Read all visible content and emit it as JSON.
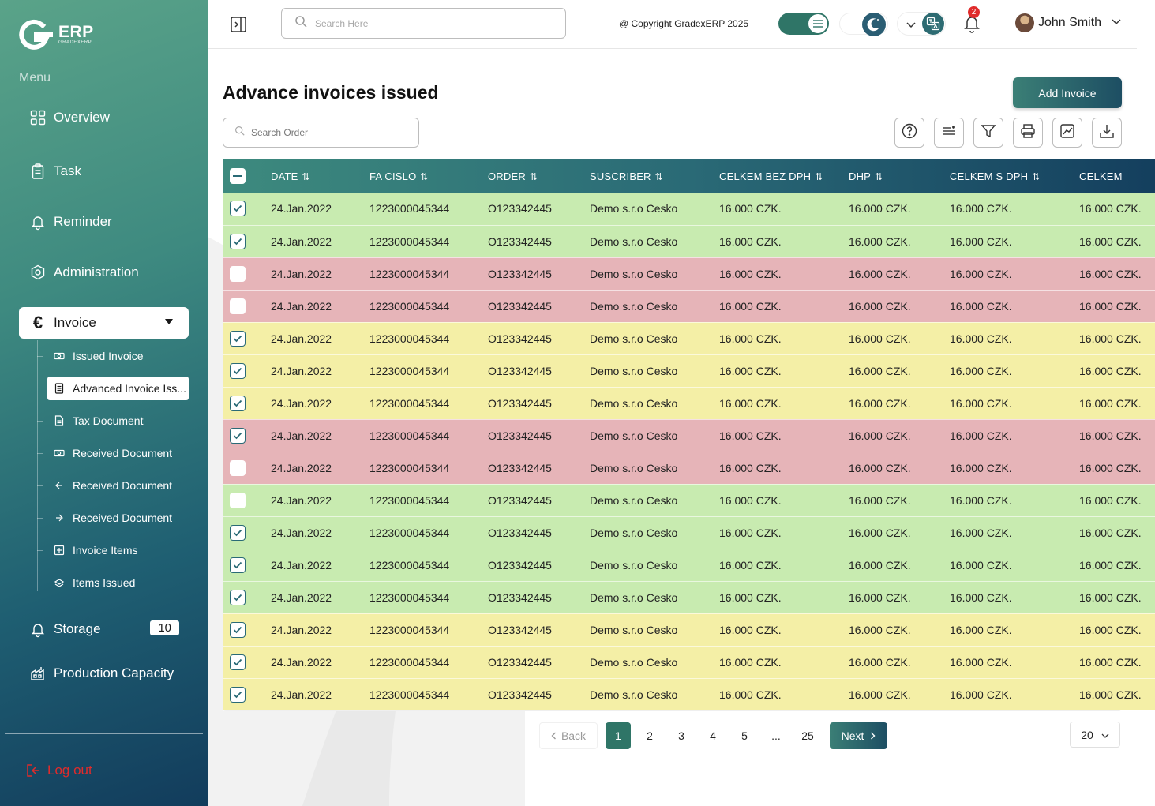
{
  "brand": {
    "name": "ERP",
    "subtitle": "GRADEXERP"
  },
  "sidebar": {
    "menu_label": "Menu",
    "items": [
      {
        "label": "Overview",
        "icon": "grid-icon"
      },
      {
        "label": "Task",
        "icon": "clipboard-icon"
      },
      {
        "label": "Reminder",
        "icon": "bell-icon"
      },
      {
        "label": "Administration",
        "icon": "settings-icon"
      },
      {
        "label": "Invoice",
        "icon": "euro-icon"
      }
    ],
    "sub_items": [
      {
        "label": "Issued Invoice",
        "icon": "cash-icon"
      },
      {
        "label": "Advanced Invoice Iss...",
        "icon": "document-icon"
      },
      {
        "label": "Tax Document",
        "icon": "file-icon"
      },
      {
        "label": "Received Document",
        "icon": "cash-icon"
      },
      {
        "label": "Received Document",
        "icon": "arrow-in-icon"
      },
      {
        "label": "Received Document",
        "icon": "arrow-out-icon"
      },
      {
        "label": "Invoice Items",
        "icon": "box-icon"
      },
      {
        "label": "Items Issued",
        "icon": "stack-icon"
      }
    ],
    "storage": {
      "label": "Storage",
      "count": "10"
    },
    "production": {
      "label": "Production Capacity"
    },
    "logout": "Log out"
  },
  "header": {
    "search_placeholder": "Search Here",
    "copyright": "@ Copyright GradexERP 2025",
    "notifications": "2",
    "user_name": "John Smith"
  },
  "main": {
    "title": "Advance invoices issued",
    "add_button": "Add Invoice",
    "search_placeholder": "Search Order"
  },
  "table": {
    "columns": [
      "DATE",
      "FA CISLO",
      "ORDER",
      "SUSCRIBER",
      "CELKEM BEZ DPH",
      "DHP",
      "CELKEM S DPH",
      "CELKEM"
    ],
    "rows": [
      {
        "checked": true,
        "color": "green",
        "date": "24.Jan.2022",
        "fa": "1223000045344",
        "order": "O123342445",
        "subscriber": "Demo s.r.o Cesko",
        "bez": "16.000 CZK.",
        "dhp": "16.000 CZK.",
        "sdph": "16.000 CZK.",
        "celkem": "16.000 CZK."
      },
      {
        "checked": true,
        "color": "green",
        "date": "24.Jan.2022",
        "fa": "1223000045344",
        "order": "O123342445",
        "subscriber": "Demo s.r.o Cesko",
        "bez": "16.000 CZK.",
        "dhp": "16.000 CZK.",
        "sdph": "16.000 CZK.",
        "celkem": "16.000 CZK."
      },
      {
        "checked": false,
        "color": "red",
        "date": "24.Jan.2022",
        "fa": "1223000045344",
        "order": "O123342445",
        "subscriber": "Demo s.r.o Cesko",
        "bez": "16.000 CZK.",
        "dhp": "16.000 CZK.",
        "sdph": "16.000 CZK.",
        "celkem": "16.000 CZK."
      },
      {
        "checked": false,
        "color": "red",
        "date": "24.Jan.2022",
        "fa": "1223000045344",
        "order": "O123342445",
        "subscriber": "Demo s.r.o Cesko",
        "bez": "16.000 CZK.",
        "dhp": "16.000 CZK.",
        "sdph": "16.000 CZK.",
        "celkem": "16.000 CZK."
      },
      {
        "checked": true,
        "color": "yellow",
        "date": "24.Jan.2022",
        "fa": "1223000045344",
        "order": "O123342445",
        "subscriber": "Demo s.r.o Cesko",
        "bez": "16.000 CZK.",
        "dhp": "16.000 CZK.",
        "sdph": "16.000 CZK.",
        "celkem": "16.000 CZK."
      },
      {
        "checked": true,
        "color": "yellow",
        "date": "24.Jan.2022",
        "fa": "1223000045344",
        "order": "O123342445",
        "subscriber": "Demo s.r.o Cesko",
        "bez": "16.000 CZK.",
        "dhp": "16.000 CZK.",
        "sdph": "16.000 CZK.",
        "celkem": "16.000 CZK."
      },
      {
        "checked": true,
        "color": "yellow",
        "date": "24.Jan.2022",
        "fa": "1223000045344",
        "order": "O123342445",
        "subscriber": "Demo s.r.o Cesko",
        "bez": "16.000 CZK.",
        "dhp": "16.000 CZK.",
        "sdph": "16.000 CZK.",
        "celkem": "16.000 CZK."
      },
      {
        "checked": true,
        "color": "red",
        "date": "24.Jan.2022",
        "fa": "1223000045344",
        "order": "O123342445",
        "subscriber": "Demo s.r.o Cesko",
        "bez": "16.000 CZK.",
        "dhp": "16.000 CZK.",
        "sdph": "16.000 CZK.",
        "celkem": "16.000 CZK."
      },
      {
        "checked": false,
        "color": "red",
        "date": "24.Jan.2022",
        "fa": "1223000045344",
        "order": "O123342445",
        "subscriber": "Demo s.r.o Cesko",
        "bez": "16.000 CZK.",
        "dhp": "16.000 CZK.",
        "sdph": "16.000 CZK.",
        "celkem": "16.000 CZK."
      },
      {
        "checked": false,
        "color": "green",
        "date": "24.Jan.2022",
        "fa": "1223000045344",
        "order": "O123342445",
        "subscriber": "Demo s.r.o Cesko",
        "bez": "16.000 CZK.",
        "dhp": "16.000 CZK.",
        "sdph": "16.000 CZK.",
        "celkem": "16.000 CZK."
      },
      {
        "checked": true,
        "color": "green",
        "date": "24.Jan.2022",
        "fa": "1223000045344",
        "order": "O123342445",
        "subscriber": "Demo s.r.o Cesko",
        "bez": "16.000 CZK.",
        "dhp": "16.000 CZK.",
        "sdph": "16.000 CZK.",
        "celkem": "16.000 CZK."
      },
      {
        "checked": true,
        "color": "green",
        "date": "24.Jan.2022",
        "fa": "1223000045344",
        "order": "O123342445",
        "subscriber": "Demo s.r.o Cesko",
        "bez": "16.000 CZK.",
        "dhp": "16.000 CZK.",
        "sdph": "16.000 CZK.",
        "celkem": "16.000 CZK."
      },
      {
        "checked": true,
        "color": "green",
        "date": "24.Jan.2022",
        "fa": "1223000045344",
        "order": "O123342445",
        "subscriber": "Demo s.r.o Cesko",
        "bez": "16.000 CZK.",
        "dhp": "16.000 CZK.",
        "sdph": "16.000 CZK.",
        "celkem": "16.000 CZK."
      },
      {
        "checked": true,
        "color": "yellow",
        "date": "24.Jan.2022",
        "fa": "1223000045344",
        "order": "O123342445",
        "subscriber": "Demo s.r.o Cesko",
        "bez": "16.000 CZK.",
        "dhp": "16.000 CZK.",
        "sdph": "16.000 CZK.",
        "celkem": "16.000 CZK."
      },
      {
        "checked": true,
        "color": "yellow",
        "date": "24.Jan.2022",
        "fa": "1223000045344",
        "order": "O123342445",
        "subscriber": "Demo s.r.o Cesko",
        "bez": "16.000 CZK.",
        "dhp": "16.000 CZK.",
        "sdph": "16.000 CZK.",
        "celkem": "16.000 CZK."
      },
      {
        "checked": true,
        "color": "yellow",
        "date": "24.Jan.2022",
        "fa": "1223000045344",
        "order": "O123342445",
        "subscriber": "Demo s.r.o Cesko",
        "bez": "16.000 CZK.",
        "dhp": "16.000 CZK.",
        "sdph": "16.000 CZK.",
        "celkem": "16.000 CZK."
      }
    ]
  },
  "pagination": {
    "back": "Back",
    "pages": [
      "1",
      "2",
      "3",
      "4",
      "5",
      "...",
      "25"
    ],
    "current": "1",
    "next": "Next",
    "page_size": "20"
  },
  "colors": {
    "accent": "#2f7567",
    "row_green": "#c8ebb0",
    "row_red": "#e6b4b8",
    "row_yellow": "#f4efa6",
    "logout": "#e02b2b"
  }
}
